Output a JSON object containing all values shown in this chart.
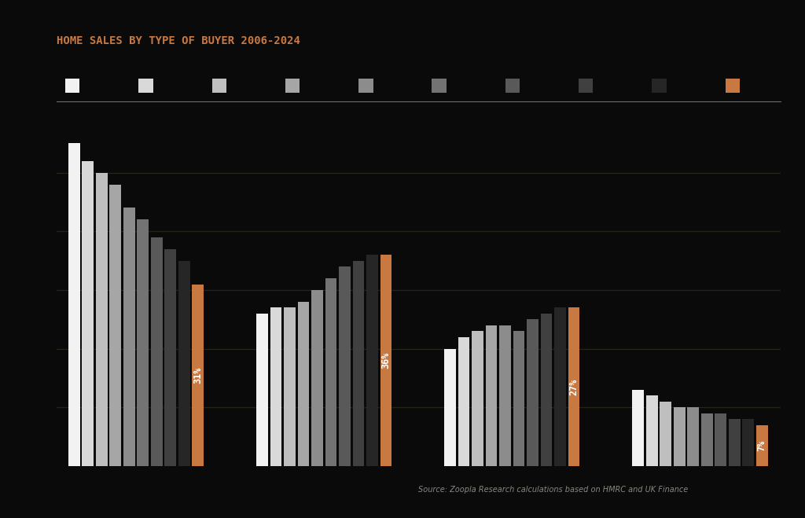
{
  "title": "HOME SALES BY TYPE OF BUYER 2006-2024",
  "title_color": "#C87941",
  "background_color": "#0a0a0a",
  "source_text": "Source: Zoopla Research calculations based on HMRC and UK Finance",
  "source_color": "#888880",
  "groups": [
    {
      "bars": [
        55,
        52,
        50,
        48,
        44,
        42,
        39,
        37,
        35,
        31
      ],
      "highlight_idx": 9,
      "highlight_label": "31%"
    },
    {
      "bars": [
        26,
        27,
        27,
        28,
        30,
        32,
        34,
        35,
        36,
        36
      ],
      "highlight_idx": 9,
      "highlight_label": "36%"
    },
    {
      "bars": [
        20,
        22,
        23,
        24,
        24,
        23,
        25,
        26,
        27,
        27
      ],
      "highlight_idx": 9,
      "highlight_label": "27%"
    },
    {
      "bars": [
        13,
        12,
        11,
        10,
        10,
        9,
        9,
        8,
        8,
        7
      ],
      "highlight_idx": 9,
      "highlight_label": "7%"
    }
  ],
  "bar_colors": [
    "#f2f2f2",
    "#d9d9d9",
    "#bfbfbf",
    "#a6a6a6",
    "#8c8c8c",
    "#737373",
    "#595959",
    "#404040",
    "#262626",
    "#C87941"
  ],
  "ylim": [
    0,
    60
  ],
  "ytick_vals": [
    10,
    20,
    30,
    40,
    50
  ],
  "grid_color": "#2a2a1a",
  "n_bars": 10,
  "n_groups": 4
}
